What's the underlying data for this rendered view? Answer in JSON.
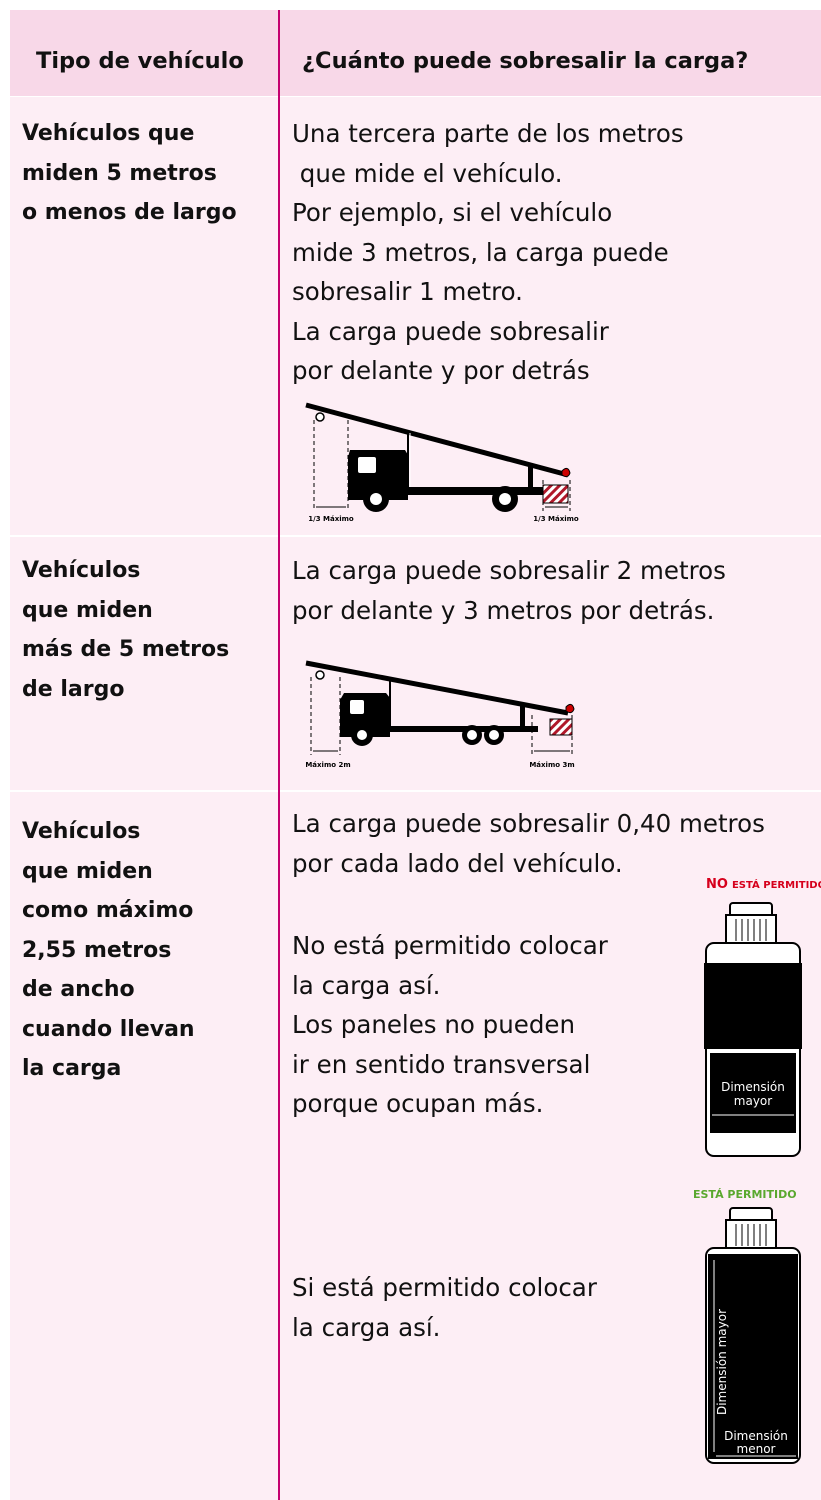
{
  "table": {
    "header": [
      "Tipo de vehículo",
      "¿Cuánto puede sobresalir la carga?"
    ],
    "rows": [
      {
        "vehicle": [
          "Vehículos que",
          "miden 5 metros",
          "o menos de largo"
        ],
        "text": [
          "Una tercera parte de los metros",
          " que mide el vehículo.",
          "Por ejemplo, si el vehículo",
          "mide 3 metros, la carga puede",
          "sobresalir 1 metro.",
          "La carga puede sobresalir",
          "por delante y por detrás"
        ],
        "figure": {
          "front_label": "1/3 Máximo",
          "rear_label": "1/3 Máximo"
        }
      },
      {
        "vehicle": [
          "Vehículos",
          "que miden",
          "más de 5 metros",
          "de largo"
        ],
        "text": [
          "La carga puede sobresalir 2 metros",
          "por delante y 3 metros por detrás."
        ],
        "figure": {
          "front_label": "Máximo 2m",
          "rear_label": "Máximo 3m"
        }
      },
      {
        "vehicle": [
          "Vehículos",
          "que miden",
          "como máximo",
          "2,55 metros",
          "de ancho",
          "cuando llevan",
          "la carga"
        ],
        "text": [
          "La carga puede sobresalir 0,40 metros",
          "por cada lado del vehículo."
        ],
        "examples": [
          {
            "status_prefix": "NO",
            "status": "ESTÁ PERMITIDO",
            "text": [
              "No está permitido colocar",
              "la carga así.",
              "Los paneles no pueden",
              "ir en sentido transversal",
              "porque ocupan más."
            ],
            "dimension_label": [
              "Dimensión",
              "mayor"
            ]
          },
          {
            "status": "ESTÁ PERMITIDO",
            "text": [
              "Si está permitido colocar",
              "la carga así."
            ],
            "dimension_labels": [
              "Dimensión mayor",
              [
                "Dimensión",
                "menor"
              ]
            ]
          }
        ]
      }
    ]
  }
}
